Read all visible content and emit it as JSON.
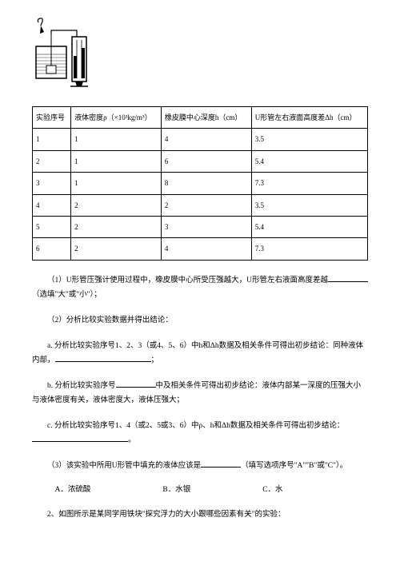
{
  "table": {
    "headers": [
      "实验序号",
      "液体密度ρ（×10³kg/m³）",
      "橡皮膜中心深度h（cm）",
      "U形管左右液面高度差Δh（cm）"
    ],
    "rows": [
      [
        "1",
        "1",
        "4",
        "3.5"
      ],
      [
        "2",
        "1",
        "6",
        "5.4"
      ],
      [
        "3",
        "1",
        "8",
        "7.3"
      ],
      [
        "4",
        "2",
        "2",
        "3.5"
      ],
      [
        "5",
        "2",
        "3",
        "5.4"
      ],
      [
        "6",
        "2",
        "4",
        "7.3"
      ]
    ]
  },
  "q1": "（1）U形管压强计使用过程中，橡皮膜中心所受压强越大，U形管左右液面高度差越",
  "q1_suffix": "（选填\"大\"或\"小\"）；",
  "q2": "（2）分析比较实验数据并得出结论：",
  "q2a_pre": "a. 分析比较实验序号1、2、3（或4、5、6）中h和Δh数据及相关条件可得出初步结论：同种液体内部，",
  "q2a_suf": "；",
  "q2b_pre": "b. 分析比较实验序号",
  "q2b_suf": "中及相关条件可得出初步结论：液体内部某一深度的压强大小与液体密度有关，液体密度大，液体压强大；",
  "q2c_pre": "c. 分析比较实验序号1、4（或2、5或3、6）中ρ、h和Δh数据及相关条件可得出初步结论：",
  "q2c_suf": "。",
  "q3_pre": "（3）该实验中所用U形管中填充的液体应该是",
  "q3_suf": "（填写选项序号\"A\"\"B\"或\"C\"）。",
  "optA": "A．浓硫酸",
  "optB": "B．水银",
  "optC": "C．水",
  "q_next": "2、如图所示是某同学用铁块\"探究浮力的大小跟哪些因素有关\"的实验："
}
